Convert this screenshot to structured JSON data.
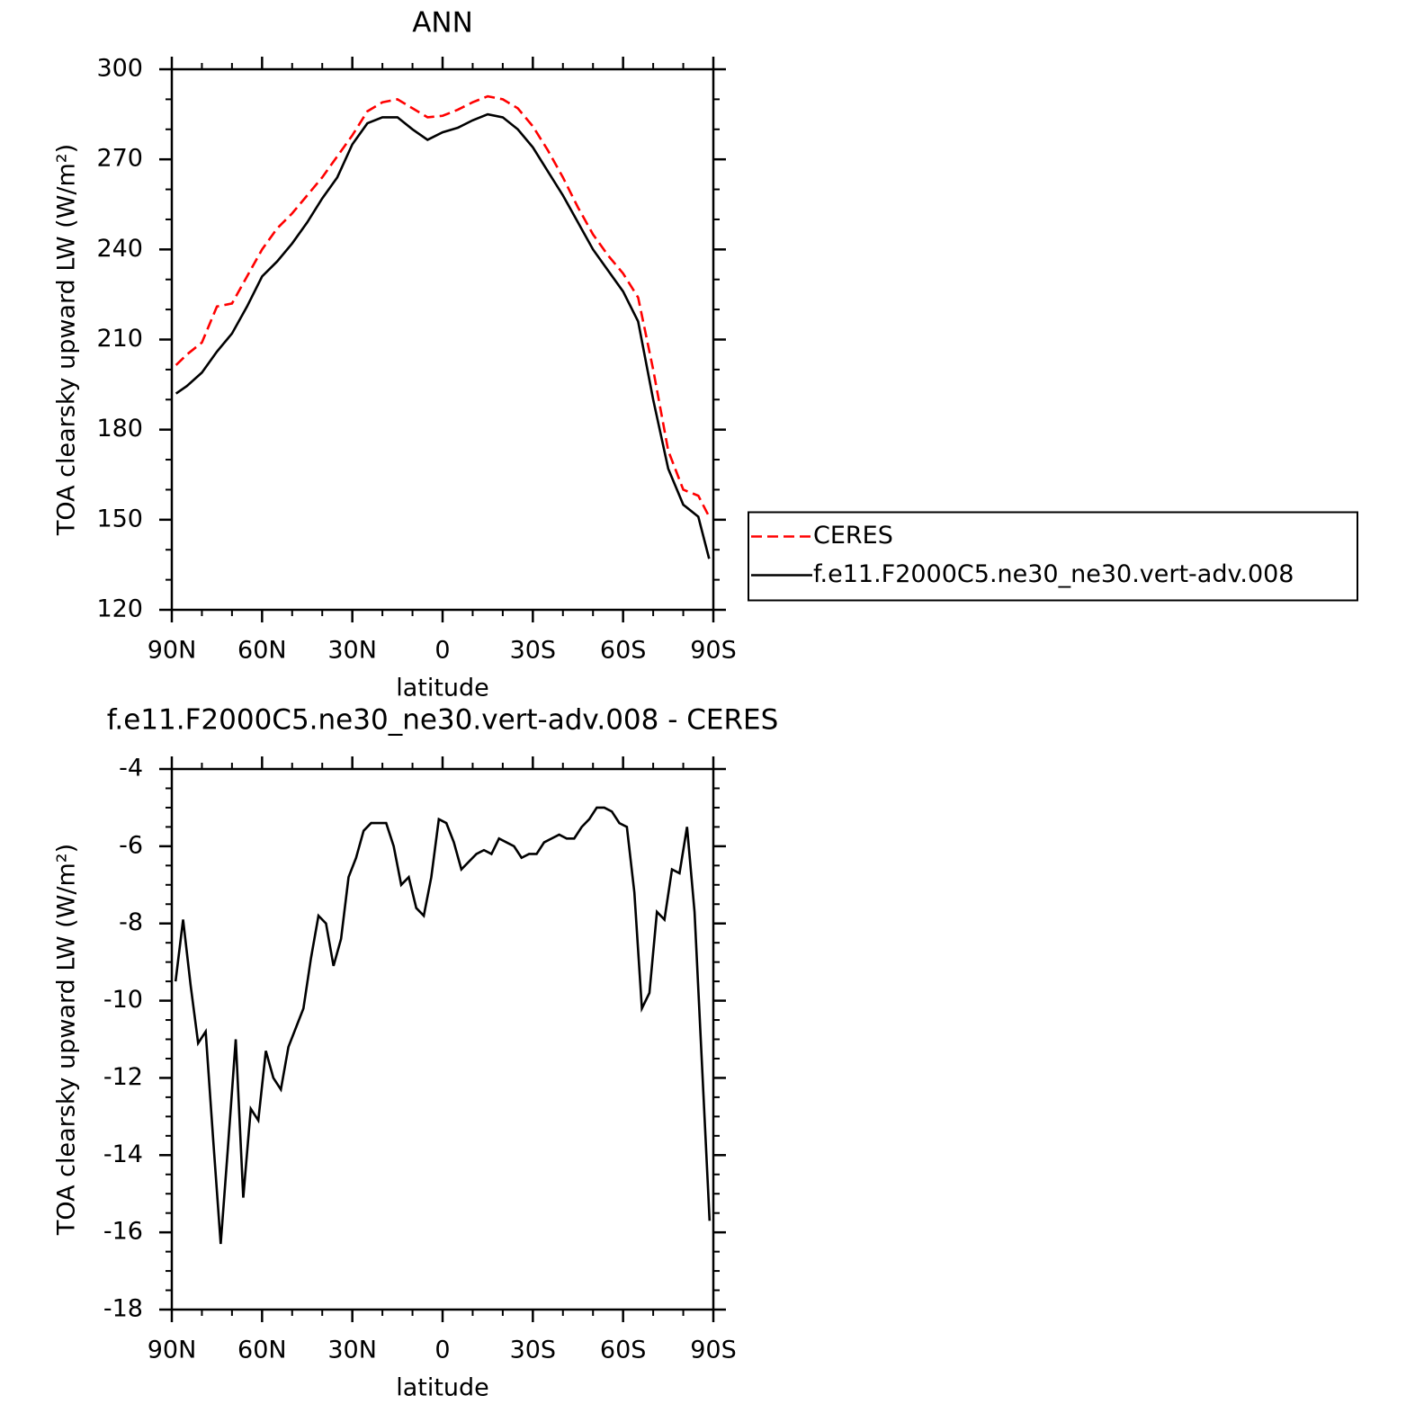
{
  "chart_data": [
    {
      "type": "line",
      "title": "ANN",
      "xlabel": "latitude",
      "ylabel": "TOA clearsky upward LW (W/m²)",
      "x": [
        88.6,
        85,
        80,
        75,
        70,
        65,
        60,
        55,
        50,
        45,
        40,
        35,
        30,
        25,
        20,
        15,
        10,
        5,
        0,
        -5,
        -10,
        -15,
        -20,
        -25,
        -30,
        -35,
        -40,
        -45,
        -50,
        -55,
        -60,
        -65,
        -70,
        -75,
        -80,
        -85,
        -88.6
      ],
      "xlim": [
        90,
        -90
      ],
      "xticks": [
        {
          "value": 90,
          "label": "90N"
        },
        {
          "value": 60,
          "label": "60N"
        },
        {
          "value": 30,
          "label": "30N"
        },
        0,
        {
          "value": -30,
          "label": "30S"
        },
        {
          "value": -60,
          "label": "60S"
        },
        {
          "value": -90,
          "label": "90S"
        }
      ],
      "ylim": [
        120,
        300
      ],
      "yticks": [
        120,
        150,
        180,
        210,
        240,
        270,
        300
      ],
      "legend": "right",
      "series": [
        {
          "name": "CERES",
          "color": "#ff0000",
          "dash": "dashed",
          "values": [
            201.5,
            205,
            209,
            221,
            222,
            231,
            240,
            247,
            252,
            258,
            264,
            271,
            278,
            286,
            289,
            290,
            287,
            284,
            284.5,
            286.5,
            289,
            291,
            290,
            287,
            281,
            273,
            264,
            254,
            245,
            238,
            232,
            224,
            200,
            173,
            160,
            158,
            151
          ]
        },
        {
          "name": "f.e11.F2000C5.ne30_ne30.vert-adv.008",
          "color": "#000000",
          "dash": "solid",
          "values": [
            192,
            194.5,
            199,
            206,
            212,
            221,
            231,
            236,
            242,
            249,
            257,
            264,
            275,
            282,
            284,
            284,
            280,
            276.5,
            279,
            280.5,
            283,
            285,
            284,
            280,
            274,
            266,
            258,
            249,
            240,
            233,
            226,
            216,
            190,
            167,
            155,
            151,
            137
          ]
        }
      ]
    },
    {
      "type": "line",
      "title": "f.e11.F2000C5.ne30_ne30.vert-adv.008 - CERES",
      "xlabel": "latitude",
      "ylabel": "TOA clearsky upward LW (W/m²)",
      "x": [
        88.75,
        86.25,
        83.75,
        81.25,
        78.75,
        76.25,
        73.75,
        71.25,
        68.75,
        66.25,
        63.75,
        61.25,
        58.75,
        56.25,
        53.75,
        51.25,
        48.75,
        46.25,
        43.75,
        41.25,
        38.75,
        36.25,
        33.75,
        31.25,
        28.75,
        26.25,
        23.75,
        21.25,
        18.75,
        16.25,
        13.75,
        11.25,
        8.75,
        6.25,
        3.75,
        1.25,
        -1.25,
        -3.75,
        -6.25,
        -8.75,
        -11.25,
        -13.75,
        -16.25,
        -18.75,
        -21.25,
        -23.75,
        -26.25,
        -28.75,
        -31.25,
        -33.75,
        -36.25,
        -38.75,
        -41.25,
        -43.75,
        -46.25,
        -48.75,
        -51.25,
        -53.75,
        -56.25,
        -58.75,
        -61.25,
        -63.75,
        -66.25,
        -68.75,
        -71.25,
        -73.75,
        -76.25,
        -78.75,
        -81.25,
        -83.75,
        -86.25,
        -88.75
      ],
      "xlim": [
        90,
        -90
      ],
      "xticks": [
        {
          "value": 90,
          "label": "90N"
        },
        {
          "value": 60,
          "label": "60N"
        },
        {
          "value": 30,
          "label": "30N"
        },
        0,
        {
          "value": -30,
          "label": "30S"
        },
        {
          "value": -60,
          "label": "60S"
        },
        {
          "value": -90,
          "label": "90S"
        }
      ],
      "ylim": [
        -18,
        -4
      ],
      "yticks": [
        -18,
        -16,
        -14,
        -12,
        -10,
        -8,
        -6,
        -4
      ],
      "color": "#000000",
      "values": [
        -9.5,
        -7.9,
        -9.6,
        -11.1,
        -10.8,
        -13.6,
        -16.3,
        -13.7,
        -11.0,
        -15.1,
        -12.8,
        -13.1,
        -11.3,
        -12.0,
        -12.3,
        -11.2,
        -10.7,
        -10.2,
        -8.9,
        -7.8,
        -8.0,
        -9.1,
        -8.4,
        -6.8,
        -6.3,
        -5.6,
        -5.4,
        -5.4,
        -5.4,
        -6.0,
        -7.0,
        -6.8,
        -7.6,
        -7.8,
        -6.8,
        -5.3,
        -5.4,
        -5.9,
        -6.6,
        -6.4,
        -6.2,
        -6.1,
        -6.2,
        -5.8,
        -5.9,
        -6.0,
        -6.3,
        -6.2,
        -6.2,
        -5.9,
        -5.8,
        -5.7,
        -5.8,
        -5.8,
        -5.5,
        -5.3,
        -5.0,
        -5.0,
        -5.1,
        -5.4,
        -5.5,
        -7.2,
        -10.2,
        -9.8,
        -7.7,
        -7.9,
        -6.6,
        -6.7,
        -5.5,
        -7.7,
        -11.7,
        -15.7
      ]
    }
  ]
}
